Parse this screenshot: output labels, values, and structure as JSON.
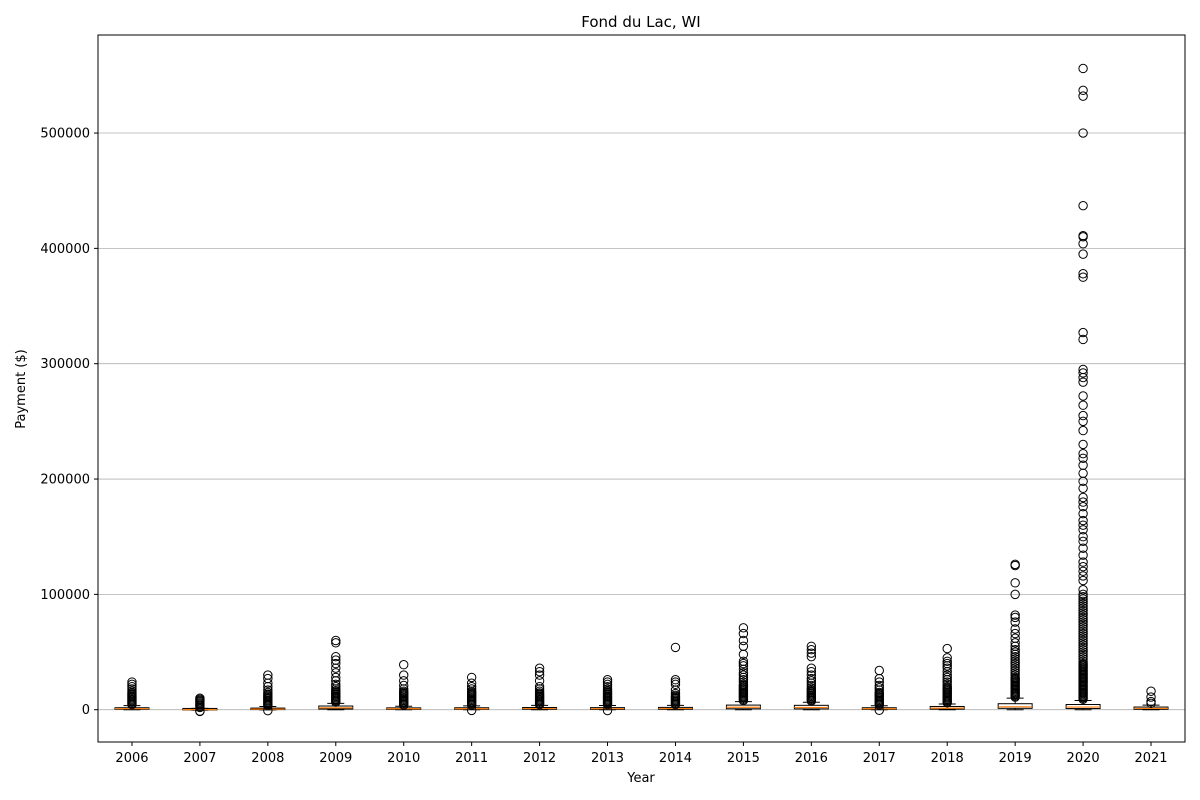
{
  "chart_data": {
    "type": "box",
    "title": "Fond du Lac, WI",
    "xlabel": "Year",
    "ylabel": "Payment ($)",
    "ylim": [
      -28000,
      585000
    ],
    "yticks": [
      0,
      100000,
      200000,
      300000,
      400000,
      500000
    ],
    "ytick_labels": [
      "0",
      "100000",
      "200000",
      "300000",
      "400000",
      "500000"
    ],
    "grid": "y",
    "colors": {
      "box": "#000000",
      "median": "#ff7f0e",
      "grid": "#b0b0b0",
      "flier": "#000000"
    },
    "categories": [
      "2006",
      "2007",
      "2008",
      "2009",
      "2010",
      "2011",
      "2012",
      "2013",
      "2014",
      "2015",
      "2016",
      "2017",
      "2018",
      "2019",
      "2020",
      "2021"
    ],
    "boxes": [
      {
        "year": "2006",
        "whisker_low": 0,
        "q1": 400,
        "median": 900,
        "q3": 1700,
        "whisker_high": 3500,
        "outliers": [
          4500,
          5500,
          6500,
          7500,
          8500,
          9500,
          10500,
          11500,
          12500,
          13500,
          14500,
          16000,
          18000,
          20000,
          22000,
          24000
        ]
      },
      {
        "year": "2007",
        "whisker_low": -500,
        "q1": -200,
        "median": 100,
        "q3": 500,
        "whisker_high": 1200,
        "outliers": [
          -1500,
          -1200,
          2000,
          3000,
          4000,
          5000,
          6000,
          7000,
          8000,
          9000,
          10000
        ]
      },
      {
        "year": "2008",
        "whisker_low": -200,
        "q1": 100,
        "median": 500,
        "q3": 1200,
        "whisker_high": 2800,
        "outliers": [
          -800,
          3500,
          4500,
          5500,
          6500,
          7500,
          8500,
          9500,
          10500,
          11500,
          12500,
          13500,
          15000,
          17000,
          20000,
          23000,
          27000,
          30000
        ]
      },
      {
        "year": "2009",
        "whisker_low": 0,
        "q1": 600,
        "median": 1600,
        "q3": 3200,
        "whisker_high": 5500,
        "outliers": [
          6500,
          7500,
          8500,
          9500,
          10500,
          11500,
          12500,
          13500,
          14500,
          15500,
          16500,
          18000,
          20000,
          22000,
          25000,
          28000,
          32000,
          36000,
          40000,
          43000,
          46000,
          58000,
          60000
        ]
      },
      {
        "year": "2010",
        "whisker_low": 0,
        "q1": 300,
        "median": 800,
        "q3": 1500,
        "whisker_high": 3000,
        "outliers": [
          4000,
          5000,
          6000,
          7000,
          8000,
          9000,
          10000,
          11000,
          12000,
          13000,
          14000,
          15000,
          16000,
          18000,
          21000,
          25000,
          30000,
          39000
        ]
      },
      {
        "year": "2011",
        "whisker_low": 0,
        "q1": 300,
        "median": 800,
        "q3": 1700,
        "whisker_high": 3300,
        "outliers": [
          -600,
          4000,
          5000,
          6000,
          7000,
          8000,
          9000,
          10000,
          11000,
          12000,
          13000,
          14000,
          15000,
          16000,
          18000,
          20000,
          23000,
          28000
        ]
      },
      {
        "year": "2012",
        "whisker_low": 0,
        "q1": 400,
        "median": 1000,
        "q3": 1900,
        "whisker_high": 3800,
        "outliers": [
          4500,
          5500,
          6500,
          7500,
          8500,
          9500,
          10500,
          11500,
          12500,
          13500,
          14500,
          16000,
          18000,
          20000,
          25000,
          30000,
          33000,
          36000
        ]
      },
      {
        "year": "2013",
        "whisker_low": 0,
        "q1": 300,
        "median": 900,
        "q3": 1800,
        "whisker_high": 3600,
        "outliers": [
          -700,
          4500,
          5500,
          6500,
          7500,
          8500,
          9500,
          10500,
          11500,
          12500,
          13500,
          14500,
          15500,
          16500,
          18000,
          20000,
          22000,
          24000,
          26000
        ]
      },
      {
        "year": "2014",
        "whisker_low": 0,
        "q1": 400,
        "median": 1000,
        "q3": 2000,
        "whisker_high": 3800,
        "outliers": [
          4500,
          5500,
          6500,
          7500,
          8500,
          9500,
          10500,
          11500,
          12500,
          14000,
          17000,
          22000,
          24000,
          26000,
          54000
        ]
      },
      {
        "year": "2015",
        "whisker_low": 0,
        "q1": 800,
        "median": 2100,
        "q3": 4000,
        "whisker_high": 7000,
        "outliers": [
          8000,
          9000,
          10000,
          11000,
          12000,
          13000,
          14000,
          15000,
          16000,
          17000,
          18000,
          19000,
          20000,
          21000,
          22000,
          24000,
          26000,
          28000,
          30000,
          32000,
          35000,
          38000,
          40000,
          42000,
          48000,
          55000,
          60000,
          66000,
          71000
        ]
      },
      {
        "year": "2016",
        "whisker_low": 0,
        "q1": 700,
        "median": 1900,
        "q3": 3800,
        "whisker_high": 6500,
        "outliers": [
          7500,
          8500,
          9500,
          10500,
          11500,
          12500,
          13500,
          14500,
          15500,
          16500,
          17500,
          19000,
          21000,
          23000,
          25000,
          27000,
          30000,
          33000,
          36000,
          46000,
          49000,
          52000,
          55000
        ]
      },
      {
        "year": "2017",
        "whisker_low": 0,
        "q1": 300,
        "median": 800,
        "q3": 1700,
        "whisker_high": 3400,
        "outliers": [
          -500,
          4000,
          5000,
          6000,
          7000,
          8000,
          9000,
          10000,
          11000,
          12000,
          13000,
          14000,
          15000,
          17000,
          19000,
          21000,
          24000,
          27000,
          34000
        ]
      },
      {
        "year": "2018",
        "whisker_low": 0,
        "q1": 500,
        "median": 1400,
        "q3": 2800,
        "whisker_high": 5000,
        "outliers": [
          6000,
          7000,
          8000,
          9000,
          10000,
          11000,
          12000,
          13000,
          14000,
          15000,
          16000,
          17000,
          18000,
          19000,
          20000,
          22000,
          24000,
          26000,
          28000,
          30000,
          33000,
          36000,
          38000,
          40000,
          42000,
          45000,
          53000
        ]
      },
      {
        "year": "2019",
        "whisker_low": 0,
        "q1": 1200,
        "median": 2500,
        "q3": 5200,
        "whisker_high": 10000,
        "outliers": [
          11000,
          12000,
          13000,
          14000,
          15000,
          16000,
          17000,
          18000,
          19000,
          20000,
          21000,
          22000,
          23000,
          24000,
          25000,
          26000,
          27000,
          28000,
          30000,
          32000,
          34000,
          36000,
          38000,
          40000,
          42000,
          44000,
          46000,
          48000,
          50000,
          52000,
          55000,
          58000,
          62000,
          66000,
          70000,
          76000,
          80000,
          82000,
          100000,
          110000,
          125000,
          126000
        ]
      },
      {
        "year": "2020",
        "whisker_low": 0,
        "q1": 1000,
        "median": 2300,
        "q3": 4500,
        "whisker_high": 8000,
        "outliers": [
          9000,
          10000,
          11000,
          12000,
          13000,
          14000,
          15000,
          16000,
          17000,
          18000,
          19000,
          20000,
          21000,
          22000,
          23000,
          24000,
          25000,
          26000,
          27000,
          28000,
          29000,
          30000,
          31000,
          32000,
          33000,
          34000,
          35000,
          36000,
          37000,
          38000,
          39000,
          40000,
          42000,
          44000,
          46000,
          48000,
          50000,
          52000,
          54000,
          56000,
          58000,
          60000,
          62000,
          64000,
          66000,
          68000,
          70000,
          72000,
          74000,
          76000,
          78000,
          80000,
          82000,
          84000,
          86000,
          88000,
          90000,
          92000,
          94000,
          96000,
          98000,
          100000,
          104000,
          112000,
          116000,
          120000,
          124000,
          128000,
          134000,
          140000,
          146000,
          150000,
          156000,
          160000,
          164000,
          170000,
          176000,
          180000,
          184000,
          192000,
          198000,
          205000,
          212000,
          218000,
          222000,
          230000,
          242000,
          250000,
          255000,
          264000,
          272000,
          284000,
          288000,
          292000,
          295000,
          321000,
          327000,
          375000,
          378000,
          395000,
          404000,
          410000,
          411000,
          437000,
          500000,
          532000,
          537000,
          556000
        ]
      },
      {
        "year": "2021",
        "whisker_low": 0,
        "q1": 400,
        "median": 1100,
        "q3": 2300,
        "whisker_high": 4000,
        "outliers": [
          5500,
          7000,
          11000,
          16000
        ]
      }
    ]
  }
}
